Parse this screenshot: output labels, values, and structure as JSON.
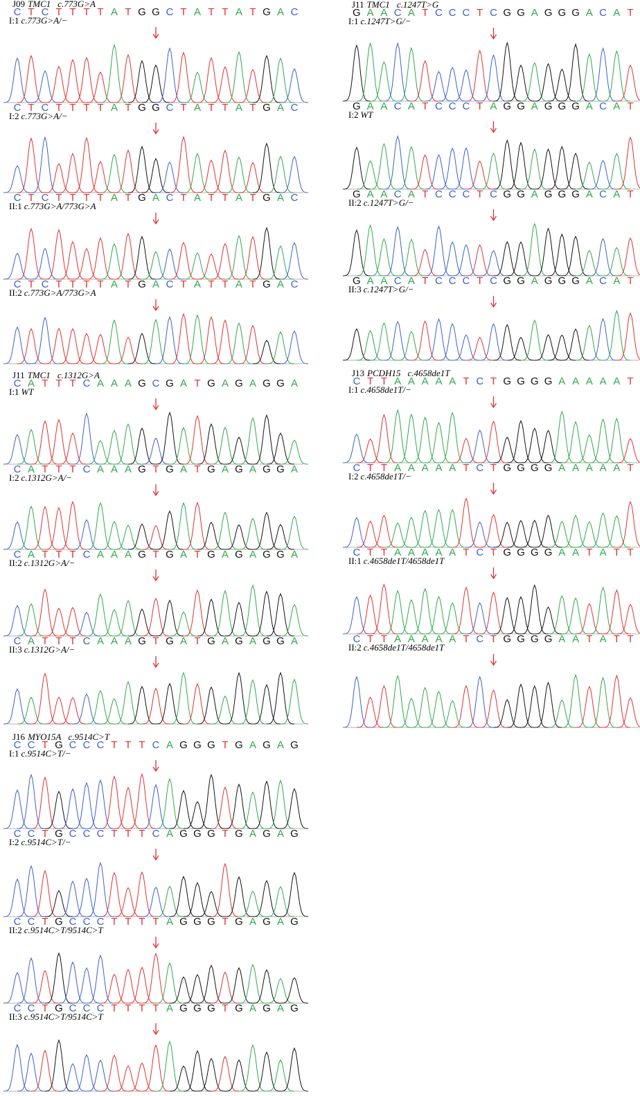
{
  "panels": [
    {
      "family": "J09",
      "gene": "TMC1",
      "mutation": "c.773G>A",
      "tracks": [
        {
          "seq": [
            "C",
            "T",
            "C",
            "T",
            "T",
            "T",
            "T",
            "A",
            "T",
            "G",
            "G",
            "C",
            "T",
            "A",
            "T",
            "T",
            "A",
            "T",
            "G",
            "A",
            "C"
          ],
          "sample": "I:1",
          "genotype": "c.773G>A/−"
        },
        {
          "seq": [
            "C",
            "T",
            "C",
            "T",
            "T",
            "T",
            "T",
            "A",
            "T",
            "G",
            "G",
            "C",
            "T",
            "A",
            "T",
            "T",
            "A",
            "T",
            "G",
            "A",
            "C"
          ],
          "sample": "I:2",
          "genotype": "c.773G>A/−"
        },
        {
          "seq": [
            "C",
            "T",
            "C",
            "T",
            "T",
            "T",
            "T",
            "A",
            "T",
            "G",
            "A",
            "C",
            "T",
            "A",
            "T",
            "T",
            "A",
            "T",
            "G",
            "A",
            "C"
          ],
          "sample": "II:1",
          "genotype": "c.773G>A/773G>A"
        },
        {
          "seq": [
            "C",
            "T",
            "C",
            "T",
            "T",
            "T",
            "T",
            "A",
            "T",
            "G",
            "A",
            "C",
            "T",
            "A",
            "T",
            "T",
            "A",
            "T",
            "G",
            "A",
            "C"
          ],
          "sample": "II:2",
          "genotype": "c.773G>A/773G>A"
        }
      ]
    },
    {
      "family": "J11",
      "gene": "TMC1",
      "mutation": "c.1312G>A",
      "tracks": [
        {
          "seq": [
            "C",
            "A",
            "T",
            "T",
            "T",
            "C",
            "A",
            "A",
            "A",
            "G",
            "C",
            "G",
            "A",
            "T",
            "G",
            "A",
            "G",
            "A",
            "G",
            "G",
            "A"
          ],
          "sample": "I:1",
          "genotype": "WT"
        },
        {
          "seq": [
            "C",
            "A",
            "T",
            "T",
            "T",
            "C",
            "A",
            "A",
            "A",
            "G",
            "T",
            "G",
            "A",
            "T",
            "G",
            "A",
            "G",
            "A",
            "G",
            "G",
            "A"
          ],
          "sample": "I:2",
          "genotype": "c.1312G>A/−"
        },
        {
          "seq": [
            "C",
            "A",
            "T",
            "T",
            "T",
            "C",
            "A",
            "A",
            "A",
            "G",
            "T",
            "G",
            "A",
            "T",
            "G",
            "A",
            "G",
            "A",
            "G",
            "G",
            "A"
          ],
          "sample": "II:2",
          "genotype": "c.1312G>A/−"
        },
        {
          "seq": [
            "C",
            "A",
            "T",
            "T",
            "T",
            "C",
            "A",
            "A",
            "A",
            "G",
            "T",
            "G",
            "A",
            "T",
            "G",
            "A",
            "G",
            "A",
            "G",
            "G",
            "A"
          ],
          "sample": "II:3",
          "genotype": "c.1312G>A/−"
        }
      ]
    },
    {
      "family": "J16",
      "gene": "MYO15A",
      "mutation": "c.9514C>T",
      "tracks": [
        {
          "seq": [
            "C",
            "C",
            "T",
            "G",
            "C",
            "C",
            "C",
            "T",
            "T",
            "T",
            "C",
            "A",
            "G",
            "G",
            "G",
            "T",
            "G",
            "A",
            "G",
            "A",
            "G"
          ],
          "sample": "I:1",
          "genotype": "c.9514C>T/−"
        },
        {
          "seq": [
            "C",
            "C",
            "T",
            "G",
            "C",
            "C",
            "C",
            "T",
            "T",
            "T",
            "C",
            "A",
            "G",
            "G",
            "G",
            "T",
            "G",
            "A",
            "G",
            "A",
            "G"
          ],
          "sample": "I:2",
          "genotype": "c.9514C>T/−"
        },
        {
          "seq": [
            "C",
            "C",
            "T",
            "G",
            "C",
            "C",
            "C",
            "T",
            "T",
            "T",
            "T",
            "A",
            "G",
            "G",
            "G",
            "T",
            "G",
            "A",
            "G",
            "A",
            "G"
          ],
          "sample": "II:2",
          "genotype": "c.9514C>T/9514C>T"
        },
        {
          "seq": [
            "C",
            "C",
            "T",
            "G",
            "C",
            "C",
            "C",
            "T",
            "T",
            "T",
            "T",
            "A",
            "G",
            "G",
            "G",
            "T",
            "G",
            "A",
            "G",
            "A",
            "G"
          ],
          "sample": "II:3",
          "genotype": "c.9514C>T/9514C>T"
        }
      ]
    },
    {
      "family": "J11",
      "gene": "TMC1",
      "mutation": "c.1247T>G",
      "tracks": [
        {
          "seq": [
            "G",
            "A",
            "A",
            "C",
            "A",
            "T",
            "C",
            "C",
            "C",
            "T",
            "C",
            "G",
            "G",
            "A",
            "G",
            "G",
            "G",
            "A",
            "C",
            "A",
            "T"
          ],
          "sample": "I:1",
          "genotype": "c.1247T>G/−"
        },
        {
          "seq": [
            "G",
            "A",
            "A",
            "C",
            "A",
            "T",
            "C",
            "C",
            "C",
            "T",
            "A",
            "G",
            "G",
            "A",
            "G",
            "G",
            "G",
            "A",
            "C",
            "A",
            "T"
          ],
          "sample": "I:2",
          "genotype": "WT"
        },
        {
          "seq": [
            "G",
            "A",
            "A",
            "C",
            "A",
            "T",
            "C",
            "C",
            "C",
            "T",
            "C",
            "G",
            "G",
            "A",
            "G",
            "G",
            "G",
            "A",
            "C",
            "A",
            "T"
          ],
          "sample": "II:2",
          "genotype": "c.1247T>G/−"
        },
        {
          "seq": [
            "G",
            "A",
            "A",
            "C",
            "A",
            "T",
            "C",
            "C",
            "C",
            "T",
            "C",
            "G",
            "G",
            "A",
            "G",
            "G",
            "G",
            "A",
            "C",
            "A",
            "T"
          ],
          "sample": "II:3",
          "genotype": "c.1247T>G/−"
        }
      ]
    },
    {
      "family": "J13",
      "gene": "PCDH15",
      "mutation": "c.4658de1T",
      "tracks": [
        {
          "seq": [
            "C",
            "T",
            "T",
            "A",
            "A",
            "A",
            "A",
            "A",
            "T",
            "C",
            "T",
            "G",
            "G",
            "G",
            "G",
            "A",
            "A",
            "A",
            "A",
            "A",
            "T"
          ],
          "sample": "I:1",
          "genotype": "c.4658de1T/−"
        },
        {
          "seq": [
            "C",
            "T",
            "T",
            "A",
            "A",
            "A",
            "A",
            "A",
            "T",
            "C",
            "T",
            "G",
            "G",
            "G",
            "G",
            "A",
            "A",
            "A",
            "A",
            "A",
            "T"
          ],
          "sample": "I:2",
          "genotype": "c.4658de1T/−"
        },
        {
          "seq": [
            "C",
            "T",
            "T",
            "A",
            "A",
            "A",
            "A",
            "A",
            "T",
            "C",
            "T",
            "G",
            "G",
            "G",
            "G",
            "A",
            "A",
            "T",
            "A",
            "T",
            "T"
          ],
          "sample": "II:1",
          "genotype": "c.4658de1T/4658de1T"
        },
        {
          "seq": [
            "C",
            "T",
            "T",
            "A",
            "A",
            "A",
            "A",
            "A",
            "T",
            "C",
            "T",
            "G",
            "G",
            "G",
            "G",
            "A",
            "A",
            "T",
            "A",
            "T",
            "T"
          ],
          "sample": "II:2",
          "genotype": "c.4658de1T/4658de1T"
        }
      ]
    }
  ]
}
